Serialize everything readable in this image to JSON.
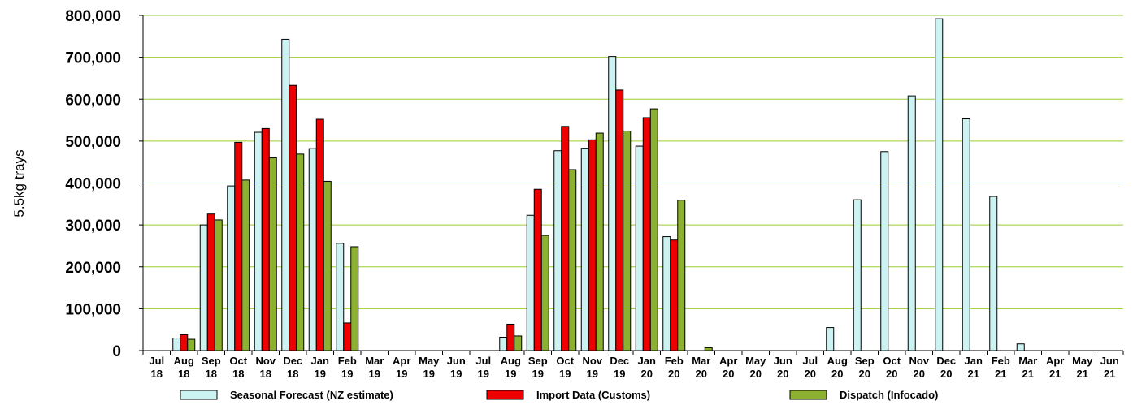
{
  "chart_data": {
    "type": "bar",
    "ylabel": "5.5kg trays",
    "ylim": [
      0,
      800000
    ],
    "yticks": [
      "0",
      "100,000",
      "200,000",
      "300,000",
      "400,000",
      "500,000",
      "600,000",
      "700,000",
      "800,000"
    ],
    "grid": true,
    "legend_position": "bottom",
    "categories": [
      [
        "Jul",
        "18"
      ],
      [
        "Aug",
        "18"
      ],
      [
        "Sep",
        "18"
      ],
      [
        "Oct",
        "18"
      ],
      [
        "Nov",
        "18"
      ],
      [
        "Dec",
        "18"
      ],
      [
        "Jan",
        "19"
      ],
      [
        "Feb",
        "19"
      ],
      [
        "Mar",
        "19"
      ],
      [
        "Apr",
        "19"
      ],
      [
        "May",
        "19"
      ],
      [
        "Jun",
        "19"
      ],
      [
        "Jul",
        "19"
      ],
      [
        "Aug",
        "19"
      ],
      [
        "Sep",
        "19"
      ],
      [
        "Oct",
        "19"
      ],
      [
        "Nov",
        "19"
      ],
      [
        "Dec",
        "19"
      ],
      [
        "Jan",
        "20"
      ],
      [
        "Feb",
        "20"
      ],
      [
        "Mar",
        "20"
      ],
      [
        "Apr",
        "20"
      ],
      [
        "May",
        "20"
      ],
      [
        "Jun",
        "20"
      ],
      [
        "Jul",
        "20"
      ],
      [
        "Aug",
        "20"
      ],
      [
        "Sep",
        "20"
      ],
      [
        "Oct",
        "20"
      ],
      [
        "Nov",
        "20"
      ],
      [
        "Dec",
        "20"
      ],
      [
        "Jan",
        "21"
      ],
      [
        "Feb",
        "21"
      ],
      [
        "Mar",
        "21"
      ],
      [
        "Apr",
        "21"
      ],
      [
        "May",
        "21"
      ],
      [
        "Jun",
        "21"
      ]
    ],
    "series": [
      {
        "name": "Seasonal Forecast (NZ estimate)",
        "color": "#ccf2f2",
        "values": [
          0,
          30000,
          300000,
          393000,
          521000,
          743000,
          482000,
          256000,
          0,
          0,
          0,
          0,
          0,
          32000,
          323000,
          477000,
          483000,
          702000,
          488000,
          272000,
          0,
          0,
          0,
          0,
          0,
          55000,
          360000,
          475000,
          608000,
          792000,
          553000,
          368000,
          16000,
          0,
          0,
          0
        ]
      },
      {
        "name": "Import Data (Customs)",
        "color": "#ee0000",
        "values": [
          0,
          38000,
          326000,
          497000,
          530000,
          633000,
          552000,
          66000,
          0,
          0,
          0,
          0,
          0,
          63000,
          385000,
          535000,
          503000,
          622000,
          556000,
          264000,
          0,
          0,
          0,
          0,
          0,
          0,
          0,
          0,
          0,
          0,
          0,
          0,
          0,
          0,
          0,
          0
        ]
      },
      {
        "name": "Dispatch (Infocado)",
        "color": "#8cb030",
        "values": [
          0,
          27000,
          312000,
          407000,
          460000,
          469000,
          404000,
          248000,
          0,
          0,
          0,
          0,
          0,
          35000,
          275000,
          432000,
          519000,
          524000,
          577000,
          359000,
          7000,
          0,
          0,
          0,
          0,
          0,
          0,
          0,
          0,
          0,
          0,
          0,
          0,
          0,
          0,
          0
        ]
      }
    ]
  }
}
